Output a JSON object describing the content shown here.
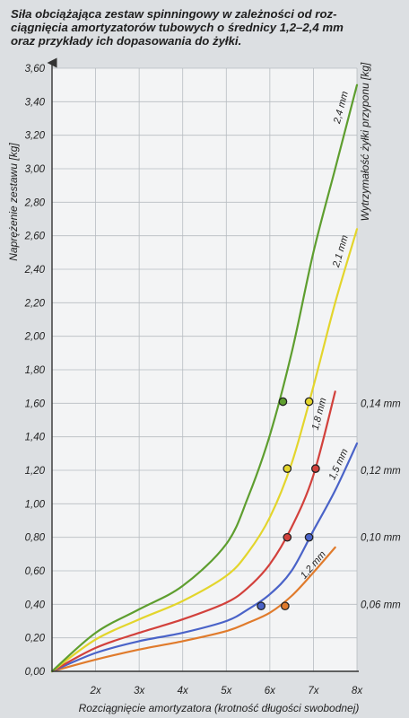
{
  "title_lines": [
    "Siła obciążająca zestaw spinningowy w zależności od roz-",
    "ciągnięcia amortyzatorów tubowych o średnicy 1,2–2,4 mm",
    "oraz przykłady ich dopasowania do żyłki."
  ],
  "chart_data": {
    "type": "line",
    "ylabel": "Naprężenie zestawu [kg]",
    "xlabel": "Rozciągnięcie amortyzatora (krotność długości swobodnej)",
    "right_axis_label": "Wytrzymałość żyłki przyponu [kg]",
    "xlim": [
      1,
      8
    ],
    "ylim": [
      0,
      3.6
    ],
    "x_ticks": [
      {
        "value": 2,
        "label": "2x"
      },
      {
        "value": 3,
        "label": "3x"
      },
      {
        "value": 4,
        "label": "4x"
      },
      {
        "value": 5,
        "label": "5x"
      },
      {
        "value": 6,
        "label": "6x"
      },
      {
        "value": 7,
        "label": "7x"
      },
      {
        "value": 8,
        "label": "8x"
      }
    ],
    "y_ticks": [
      {
        "value": 0,
        "label": "0,00"
      },
      {
        "value": 0.2,
        "label": "0,20"
      },
      {
        "value": 0.4,
        "label": "0,40"
      },
      {
        "value": 0.6,
        "label": "0,60"
      },
      {
        "value": 0.8,
        "label": "0,80"
      },
      {
        "value": 1.0,
        "label": "1,00"
      },
      {
        "value": 1.2,
        "label": "1,20"
      },
      {
        "value": 1.4,
        "label": "1,40"
      },
      {
        "value": 1.6,
        "label": "1,60"
      },
      {
        "value": 1.8,
        "label": "1,80"
      },
      {
        "value": 2.0,
        "label": "2,00"
      },
      {
        "value": 2.2,
        "label": "2,20"
      },
      {
        "value": 2.4,
        "label": "2,40"
      },
      {
        "value": 2.6,
        "label": "2,60"
      },
      {
        "value": 2.8,
        "label": "2,80"
      },
      {
        "value": 3.0,
        "label": "3,00"
      },
      {
        "value": 3.2,
        "label": "3,20"
      },
      {
        "value": 3.4,
        "label": "3,40"
      },
      {
        "value": 3.6,
        "label": "3,60"
      }
    ],
    "grid": true,
    "series": [
      {
        "name": "1,2 mm",
        "color": "#e07b2c",
        "x": [
          1,
          2,
          3,
          4,
          5,
          5.5,
          6,
          6.5,
          7,
          7.5
        ],
        "y": [
          0,
          0.07,
          0.13,
          0.18,
          0.24,
          0.29,
          0.35,
          0.45,
          0.59,
          0.74
        ]
      },
      {
        "name": "1,5 mm",
        "color": "#4a63c8",
        "x": [
          1,
          2,
          3,
          4,
          5,
          5.5,
          6,
          6.5,
          7,
          7.5,
          8
        ],
        "y": [
          0,
          0.11,
          0.18,
          0.23,
          0.3,
          0.37,
          0.46,
          0.6,
          0.84,
          1.08,
          1.36
        ]
      },
      {
        "name": "1,8 mm",
        "color": "#d2413c",
        "x": [
          1,
          2,
          3,
          4,
          5,
          5.5,
          6,
          6.5,
          7,
          7.5
        ],
        "y": [
          0,
          0.14,
          0.23,
          0.31,
          0.41,
          0.5,
          0.64,
          0.86,
          1.17,
          1.67
        ]
      },
      {
        "name": "2,1 mm",
        "color": "#e3d52c",
        "x": [
          1,
          2,
          3,
          4,
          5,
          5.5,
          6,
          6.5,
          7,
          7.5,
          8
        ],
        "y": [
          0,
          0.19,
          0.31,
          0.42,
          0.57,
          0.71,
          0.92,
          1.24,
          1.7,
          2.2,
          2.64
        ]
      },
      {
        "name": "2,4 mm",
        "color": "#5e9e2f",
        "x": [
          1,
          2,
          3,
          4,
          5,
          5.5,
          6,
          6.5,
          7,
          7.5,
          8
        ],
        "y": [
          0,
          0.23,
          0.37,
          0.51,
          0.76,
          1.04,
          1.41,
          1.9,
          2.5,
          3.0,
          3.5
        ]
      }
    ],
    "right_labels": [
      {
        "y": 1.6,
        "label": "0,14 mm"
      },
      {
        "y": 1.2,
        "label": "0,12 mm"
      },
      {
        "y": 0.8,
        "label": "0,10 mm"
      },
      {
        "y": 0.4,
        "label": "0,06 mm"
      }
    ],
    "markers": [
      {
        "x": 6.3,
        "y": 1.61,
        "color": "#5e9e2f"
      },
      {
        "x": 6.9,
        "y": 1.61,
        "color": "#e3d52c"
      },
      {
        "x": 6.4,
        "y": 1.21,
        "color": "#e3d52c"
      },
      {
        "x": 7.05,
        "y": 1.21,
        "color": "#d2413c"
      },
      {
        "x": 6.4,
        "y": 0.8,
        "color": "#d2413c"
      },
      {
        "x": 6.9,
        "y": 0.8,
        "color": "#4a63c8"
      },
      {
        "x": 5.8,
        "y": 0.39,
        "color": "#4a63c8"
      },
      {
        "x": 6.35,
        "y": 0.39,
        "color": "#e07b2c"
      }
    ]
  }
}
